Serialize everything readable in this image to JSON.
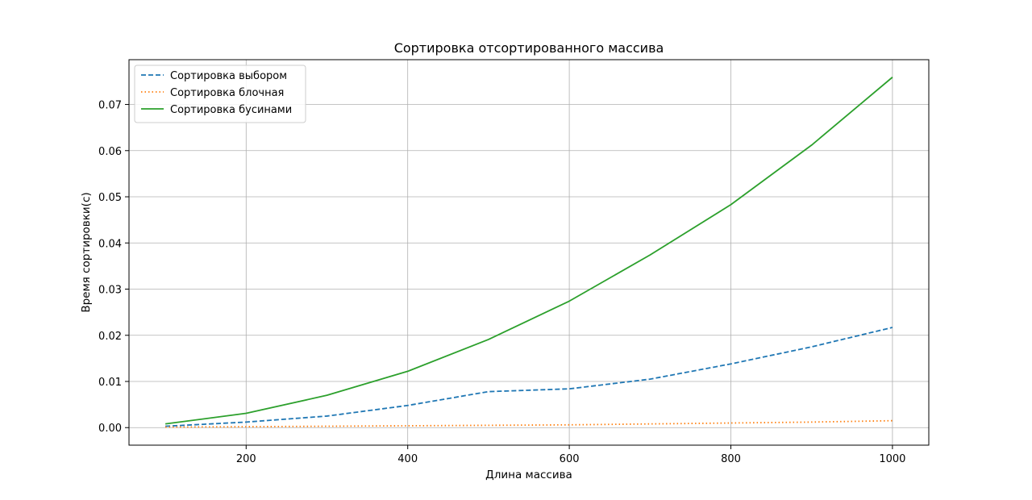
{
  "chart_data": {
    "type": "line",
    "title": "Сортировка отсортированного массива",
    "xlabel": "Длина массива",
    "ylabel": "Время сортировки(с)",
    "x": [
      100,
      200,
      300,
      400,
      500,
      600,
      700,
      800,
      900,
      1000
    ],
    "xlim": [
      55,
      1045
    ],
    "ylim": [
      -0.0038,
      0.0797
    ],
    "xticks": [
      200,
      400,
      600,
      800,
      1000
    ],
    "yticks": [
      0.0,
      0.01,
      0.02,
      0.03,
      0.04,
      0.05,
      0.06,
      0.07
    ],
    "ytick_labels": [
      "0.00",
      "0.01",
      "0.02",
      "0.03",
      "0.04",
      "0.05",
      "0.06",
      "0.07"
    ],
    "grid": true,
    "legend_position": "top-left",
    "series": [
      {
        "name": "Сортировка выбором",
        "color": "#1f77b4",
        "style": "dashed",
        "values": [
          0.0003,
          0.0012,
          0.0025,
          0.0048,
          0.0078,
          0.0084,
          0.0105,
          0.0138,
          0.0175,
          0.0217
        ]
      },
      {
        "name": "Сортировка блочная",
        "color": "#ff7f0e",
        "style": "dotted",
        "values": [
          0.0001,
          0.0002,
          0.0003,
          0.0004,
          0.0005,
          0.0006,
          0.0008,
          0.001,
          0.0012,
          0.0015
        ]
      },
      {
        "name": "Сортировка бусинами",
        "color": "#2ca02c",
        "style": "solid",
        "values": [
          0.0008,
          0.0031,
          0.007,
          0.0122,
          0.0191,
          0.0274,
          0.0374,
          0.0483,
          0.0612,
          0.0759
        ]
      }
    ]
  }
}
